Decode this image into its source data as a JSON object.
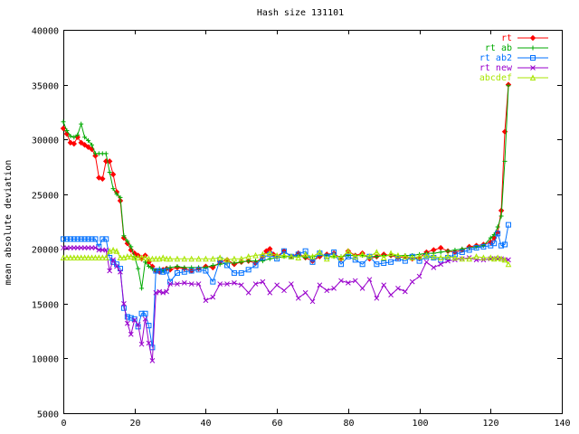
{
  "chart_data": {
    "type": "line",
    "title": "Hash size 131101",
    "xlabel": "",
    "ylabel": "mean absolute deviation",
    "xlim": [
      0,
      140
    ],
    "ylim": [
      5000,
      40000
    ],
    "xticks": [
      0,
      20,
      40,
      60,
      80,
      100,
      120,
      140
    ],
    "xtick_labels": [
      "0",
      "20",
      "40",
      "60",
      "80",
      "100",
      "120",
      "140"
    ],
    "yticks": [
      5000,
      10000,
      15000,
      20000,
      25000,
      30000,
      35000,
      40000
    ],
    "ytick_labels": [
      "5000",
      "10000",
      "15000",
      "20000",
      "25000",
      "30000",
      "35000",
      "40000"
    ],
    "grid": false,
    "legend_position": "top-right",
    "series": [
      {
        "name": "rt",
        "color": "#ff0000",
        "marker": "diamond",
        "x": [
          0,
          1,
          2,
          3,
          4,
          5,
          6,
          7,
          8,
          9,
          10,
          11,
          12,
          13,
          14,
          15,
          16,
          17,
          18,
          19,
          20,
          21,
          22,
          23,
          24,
          25,
          26,
          27,
          28,
          29,
          30,
          32,
          34,
          36,
          38,
          40,
          42,
          44,
          46,
          48,
          50,
          52,
          54,
          56,
          57,
          58,
          59,
          60,
          62,
          64,
          66,
          68,
          70,
          72,
          74,
          76,
          78,
          80,
          82,
          84,
          86,
          88,
          90,
          92,
          94,
          96,
          98,
          100,
          102,
          104,
          106,
          108,
          110,
          112,
          114,
          116,
          118,
          120,
          121,
          122,
          123,
          124,
          125
        ],
        "y": [
          31000,
          30500,
          29700,
          29600,
          30200,
          29700,
          29500,
          29300,
          29100,
          28500,
          26500,
          26400,
          28000,
          28000,
          26800,
          25200,
          24400,
          21000,
          20500,
          19900,
          19600,
          19400,
          19100,
          19400,
          18800,
          18400,
          18000,
          17900,
          18100,
          18200,
          18100,
          18300,
          18200,
          18000,
          18200,
          18400,
          18300,
          18800,
          19000,
          18600,
          18800,
          18900,
          18700,
          19300,
          19800,
          20000,
          19500,
          19300,
          19800,
          19300,
          19600,
          19200,
          18900,
          19300,
          19500,
          19600,
          19100,
          19800,
          19400,
          19600,
          19100,
          19300,
          19500,
          19400,
          19200,
          19300,
          19100,
          19200,
          19700,
          19900,
          20100,
          19800,
          19700,
          19900,
          20200,
          20300,
          20400,
          20600,
          21000,
          21500,
          23500,
          30700,
          35000
        ]
      },
      {
        "name": "rt ab",
        "color": "#00aa00",
        "marker": "plus",
        "x": [
          0,
          1,
          2,
          3,
          4,
          5,
          6,
          7,
          8,
          9,
          10,
          11,
          12,
          13,
          14,
          15,
          16,
          17,
          18,
          19,
          20,
          21,
          22,
          23,
          24,
          25,
          26,
          27,
          28,
          29,
          30,
          32,
          34,
          36,
          38,
          40,
          42,
          44,
          46,
          48,
          50,
          52,
          54,
          56,
          58,
          60,
          62,
          64,
          66,
          68,
          70,
          72,
          74,
          76,
          78,
          80,
          82,
          84,
          86,
          88,
          90,
          92,
          94,
          96,
          98,
          100,
          102,
          104,
          106,
          108,
          110,
          112,
          114,
          116,
          118,
          120,
          121,
          122,
          123,
          124,
          125
        ],
        "y": [
          31600,
          30800,
          30300,
          30200,
          30400,
          31400,
          30200,
          29900,
          29500,
          28700,
          28700,
          28700,
          28700,
          27000,
          25500,
          25000,
          24700,
          21200,
          20700,
          20200,
          19300,
          18200,
          16400,
          18800,
          18400,
          18200,
          18000,
          18200,
          18000,
          18200,
          18300,
          18400,
          18300,
          18300,
          18300,
          18300,
          18500,
          18600,
          18700,
          18700,
          18800,
          18900,
          18900,
          18900,
          19100,
          19200,
          19300,
          19300,
          19400,
          19200,
          19300,
          19400,
          19400,
          19300,
          19300,
          19400,
          19400,
          19400,
          19300,
          19300,
          19400,
          19400,
          19400,
          19400,
          19400,
          19500,
          19600,
          19600,
          19700,
          19800,
          19900,
          20000,
          20100,
          20200,
          20300,
          21000,
          21300,
          22000,
          23000,
          28000,
          34900
        ]
      },
      {
        "name": "rt ab2",
        "color": "#0070ff",
        "marker": "square",
        "x": [
          0,
          1,
          2,
          3,
          4,
          5,
          6,
          7,
          8,
          9,
          10,
          11,
          12,
          13,
          14,
          15,
          16,
          17,
          18,
          19,
          20,
          21,
          22,
          23,
          24,
          25,
          26,
          27,
          28,
          29,
          30,
          32,
          34,
          36,
          38,
          40,
          42,
          44,
          46,
          48,
          50,
          52,
          54,
          56,
          58,
          60,
          62,
          64,
          66,
          68,
          70,
          72,
          74,
          76,
          78,
          80,
          82,
          84,
          86,
          88,
          90,
          92,
          94,
          96,
          98,
          100,
          102,
          104,
          106,
          108,
          110,
          112,
          114,
          116,
          118,
          120,
          121,
          122,
          123,
          124,
          125
        ],
        "y": [
          20900,
          20900,
          20900,
          20900,
          20900,
          20900,
          20900,
          20900,
          20900,
          20900,
          20200,
          20900,
          20900,
          19200,
          18800,
          18600,
          18200,
          14600,
          13800,
          13700,
          13600,
          12900,
          14100,
          14100,
          13000,
          11000,
          18000,
          18000,
          17900,
          18000,
          17000,
          17800,
          17900,
          18000,
          18100,
          18000,
          17000,
          19000,
          18500,
          17800,
          17800,
          18100,
          18500,
          19200,
          19500,
          19100,
          19800,
          19300,
          19500,
          19800,
          18800,
          19600,
          19300,
          19700,
          18600,
          19300,
          19000,
          18600,
          19300,
          18600,
          18700,
          18800,
          19100,
          18900,
          19300,
          18900,
          19300,
          19200,
          19000,
          19200,
          19500,
          19700,
          19900,
          20100,
          20200,
          20300,
          20500,
          21400,
          20300,
          20400,
          22200
        ]
      },
      {
        "name": "rt new",
        "color": "#9900cc",
        "marker": "x",
        "x": [
          0,
          1,
          2,
          3,
          4,
          5,
          6,
          7,
          8,
          9,
          10,
          11,
          12,
          13,
          14,
          15,
          16,
          17,
          18,
          19,
          20,
          21,
          22,
          23,
          24,
          25,
          26,
          27,
          28,
          29,
          30,
          32,
          34,
          36,
          38,
          40,
          42,
          44,
          46,
          48,
          50,
          52,
          54,
          56,
          58,
          60,
          62,
          64,
          66,
          68,
          70,
          72,
          74,
          76,
          78,
          80,
          82,
          84,
          86,
          88,
          90,
          92,
          94,
          96,
          98,
          100,
          102,
          104,
          106,
          108,
          110,
          112,
          114,
          116,
          118,
          120,
          121,
          122,
          123,
          124,
          125
        ],
        "y": [
          20100,
          20100,
          20100,
          20100,
          20100,
          20100,
          20100,
          20100,
          20100,
          20100,
          19900,
          19900,
          19900,
          18000,
          19000,
          18400,
          17900,
          15000,
          13200,
          12200,
          13500,
          13100,
          11300,
          13600,
          11400,
          9800,
          16000,
          16100,
          16000,
          16100,
          16800,
          16800,
          16900,
          16800,
          16800,
          15300,
          15600,
          16800,
          16800,
          16900,
          16700,
          16000,
          16800,
          17000,
          16000,
          16700,
          16200,
          16800,
          15500,
          16000,
          15200,
          16700,
          16200,
          16400,
          17100,
          16900,
          17100,
          16400,
          17200,
          15500,
          16700,
          15800,
          16400,
          16100,
          17000,
          17500,
          18800,
          18300,
          18600,
          18900,
          19000,
          19100,
          19200,
          19000,
          19000,
          19100,
          19100,
          19100,
          19100,
          19000,
          19000
        ]
      },
      {
        "name": "abcdef",
        "color": "#a8e600",
        "marker": "triangle",
        "x": [
          0,
          1,
          2,
          3,
          4,
          5,
          6,
          7,
          8,
          9,
          10,
          11,
          12,
          13,
          14,
          15,
          16,
          17,
          18,
          19,
          20,
          21,
          22,
          23,
          24,
          25,
          26,
          27,
          28,
          29,
          30,
          32,
          34,
          36,
          38,
          40,
          42,
          44,
          46,
          48,
          50,
          52,
          54,
          56,
          58,
          60,
          62,
          64,
          66,
          68,
          70,
          72,
          74,
          76,
          78,
          80,
          82,
          84,
          86,
          88,
          90,
          92,
          94,
          96,
          98,
          100,
          102,
          104,
          106,
          108,
          110,
          112,
          114,
          116,
          118,
          120,
          121,
          122,
          123,
          124,
          125
        ],
        "y": [
          19200,
          19200,
          19200,
          19200,
          19200,
          19200,
          19200,
          19200,
          19200,
          19200,
          19200,
          19200,
          19200,
          19800,
          19900,
          19800,
          19200,
          19200,
          19300,
          19300,
          19200,
          19200,
          19200,
          19200,
          19100,
          19100,
          19100,
          19100,
          19200,
          19100,
          19100,
          19100,
          19100,
          19100,
          19100,
          19100,
          19100,
          19200,
          19000,
          19100,
          19100,
          19300,
          19400,
          19500,
          19600,
          19400,
          19400,
          19300,
          19200,
          19500,
          19300,
          19700,
          19100,
          19400,
          19200,
          19800,
          19300,
          19500,
          19300,
          19700,
          19200,
          19600,
          19400,
          19300,
          19200,
          19300,
          19400,
          19300,
          19200,
          19300,
          19200,
          19100,
          19100,
          19300,
          19200,
          19200,
          19100,
          19200,
          19100,
          19000,
          18600
        ]
      }
    ]
  }
}
